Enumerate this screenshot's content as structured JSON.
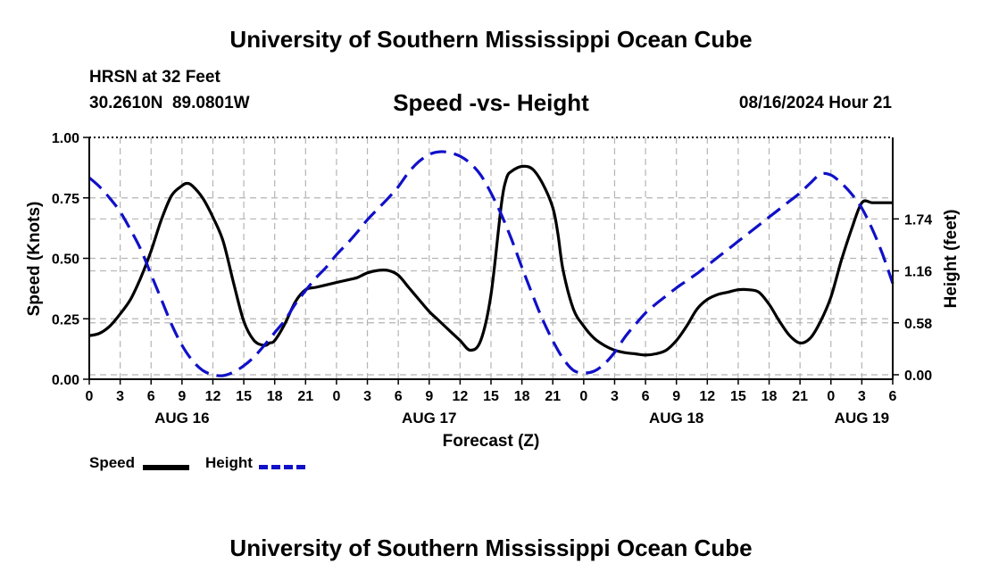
{
  "header": {
    "title": "University of Southern Mississippi Ocean Cube",
    "station": "HRSN at 32 Feet",
    "coords": "30.2610N  89.0801W",
    "subtitle": "Speed -vs- Height",
    "timestamp": "08/16/2024 Hour 21"
  },
  "footer": {
    "title": "University of Southern Mississippi Ocean Cube"
  },
  "legend": {
    "speed_label": "Speed",
    "height_label": "Height"
  },
  "colors": {
    "speed": "#000000",
    "height": "#1010c8",
    "grid": "#b4b4b4"
  },
  "chart_data": {
    "type": "line",
    "title": "Speed -vs- Height",
    "xlabel": "Forecast (Z)",
    "ylabel": "Speed (Knots)",
    "y2label": "Height (feet)",
    "x_range_hours": [
      0,
      78
    ],
    "x_tick_labels": [
      "0",
      "3",
      "6",
      "9",
      "12",
      "15",
      "18",
      "21",
      "0",
      "3",
      "6",
      "9",
      "12",
      "15",
      "18",
      "21",
      "0",
      "3",
      "6",
      "9",
      "12",
      "15",
      "18",
      "21",
      "0",
      "3",
      "6"
    ],
    "day_labels": [
      {
        "label": "AUG 16",
        "hour": 9
      },
      {
        "label": "AUG 17",
        "hour": 33
      },
      {
        "label": "AUG 18",
        "hour": 57
      },
      {
        "label": "AUG 19",
        "hour": 75
      }
    ],
    "ylim": [
      0,
      1.0
    ],
    "y_ticks": [
      0.0,
      0.25,
      0.5,
      0.75,
      1.0
    ],
    "y_tick_labels": [
      "0.00",
      "0.25",
      "0.50",
      "0.75",
      "1.00"
    ],
    "y2lim": [
      -0.05,
      2.65
    ],
    "y2_ticks": [
      0.0,
      0.58,
      1.16,
      1.74
    ],
    "y2_tick_labels": [
      "0.00",
      "0.58",
      "1.16",
      "1.74"
    ],
    "grid": true,
    "legend_position": "bottom-left",
    "series": [
      {
        "name": "Speed",
        "axis": "left",
        "style": "solid",
        "x": [
          0,
          1,
          2,
          3,
          4,
          5,
          6,
          7,
          8,
          9,
          9.5,
          10,
          11,
          12,
          13,
          14,
          15,
          16,
          17,
          17.5,
          18,
          19,
          20,
          21,
          22,
          23,
          24,
          25,
          26,
          27,
          28,
          29,
          30,
          31,
          32,
          33,
          34,
          35,
          36,
          37,
          38,
          39,
          40,
          40.5,
          41,
          42,
          43,
          44,
          45,
          45.5,
          46,
          47,
          48,
          49,
          50,
          51,
          52,
          53,
          54,
          55,
          56,
          57,
          58,
          59,
          60,
          61,
          62,
          63,
          64,
          65,
          66,
          67,
          68,
          69,
          70,
          71,
          72,
          73,
          74,
          75,
          76,
          77,
          78
        ],
        "values": [
          0.18,
          0.19,
          0.22,
          0.27,
          0.33,
          0.42,
          0.53,
          0.66,
          0.76,
          0.8,
          0.81,
          0.8,
          0.75,
          0.67,
          0.57,
          0.4,
          0.24,
          0.16,
          0.14,
          0.15,
          0.16,
          0.23,
          0.32,
          0.37,
          0.38,
          0.39,
          0.4,
          0.41,
          0.42,
          0.44,
          0.45,
          0.45,
          0.43,
          0.38,
          0.33,
          0.28,
          0.24,
          0.2,
          0.16,
          0.12,
          0.16,
          0.35,
          0.72,
          0.83,
          0.86,
          0.88,
          0.87,
          0.81,
          0.71,
          0.6,
          0.45,
          0.29,
          0.22,
          0.17,
          0.14,
          0.12,
          0.11,
          0.105,
          0.1,
          0.105,
          0.12,
          0.16,
          0.22,
          0.29,
          0.33,
          0.35,
          0.36,
          0.37,
          0.37,
          0.36,
          0.31,
          0.24,
          0.18,
          0.15,
          0.17,
          0.24,
          0.34,
          0.49,
          0.62,
          0.73,
          0.73,
          0.73,
          0.73
        ],
        "x_trim": 78
      },
      {
        "name": "Height",
        "axis": "right",
        "style": "dashed",
        "x": [
          0,
          1,
          2,
          3,
          4,
          5,
          6,
          7,
          8,
          9,
          10,
          11,
          12,
          13,
          14,
          15,
          16,
          17,
          18,
          19,
          20,
          21,
          22,
          23,
          24,
          25,
          26,
          27,
          28,
          29,
          30,
          31,
          32,
          33,
          34,
          35,
          36,
          37,
          38,
          39,
          40,
          41,
          42,
          43,
          44,
          45,
          46,
          47,
          48,
          49,
          50,
          51,
          52,
          53,
          54,
          55,
          56,
          57,
          58,
          59,
          60,
          61,
          62,
          63,
          64,
          65,
          66,
          67,
          68,
          69,
          70,
          71,
          72,
          73,
          74,
          75,
          76,
          77,
          78
        ],
        "values": [
          2.2,
          2.1,
          1.97,
          1.82,
          1.62,
          1.4,
          1.12,
          0.84,
          0.56,
          0.33,
          0.16,
          0.05,
          0.0,
          -0.01,
          0.03,
          0.1,
          0.2,
          0.33,
          0.47,
          0.61,
          0.79,
          0.94,
          1.08,
          1.2,
          1.34,
          1.46,
          1.59,
          1.73,
          1.85,
          1.97,
          2.1,
          2.26,
          2.38,
          2.46,
          2.49,
          2.48,
          2.44,
          2.36,
          2.23,
          2.03,
          1.79,
          1.51,
          1.2,
          0.9,
          0.62,
          0.38,
          0.18,
          0.05,
          0.02,
          0.04,
          0.12,
          0.25,
          0.42,
          0.56,
          0.69,
          0.79,
          0.88,
          0.97,
          1.05,
          1.13,
          1.22,
          1.31,
          1.4,
          1.49,
          1.58,
          1.67,
          1.76,
          1.85,
          1.94,
          2.03,
          2.14,
          2.24,
          2.23,
          2.14,
          2.02,
          1.86,
          1.63,
          1.35,
          1.02
        ]
      }
    ]
  }
}
